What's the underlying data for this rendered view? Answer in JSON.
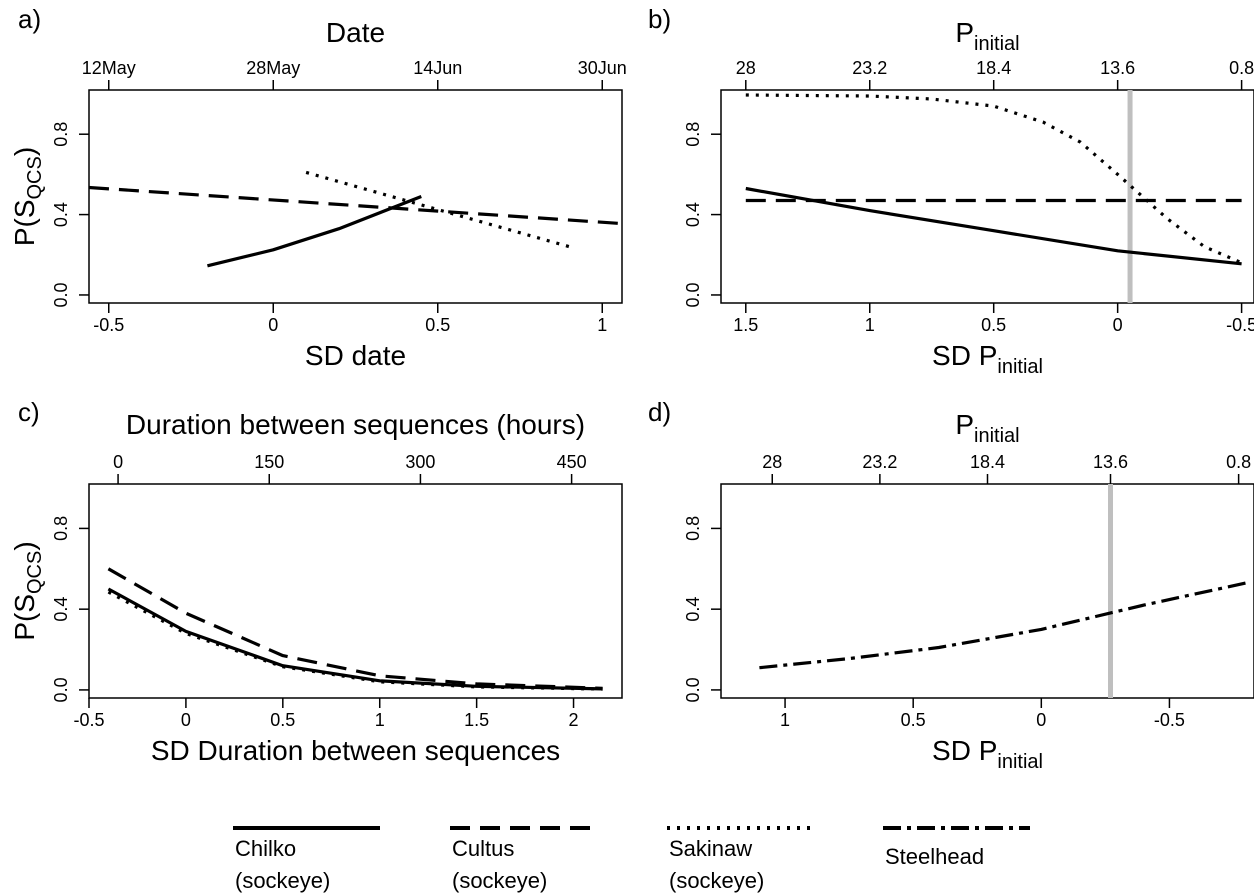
{
  "chart_data": [
    {
      "panel_label": "a)",
      "type": "line",
      "top_title": "Date",
      "xlabel": "SD date",
      "ylabel": "P(S",
      "ylabel_sub": "QCS",
      "ylabel_close": ")",
      "xlim": [
        -0.56,
        1.06
      ],
      "ylim": [
        -0.04,
        1.02
      ],
      "x_ticks": [
        -0.5,
        0,
        0.5,
        1
      ],
      "x_tick_labels": [
        "-0.5",
        "0",
        "0.5",
        "1"
      ],
      "y_ticks": [
        0.0,
        0.4,
        0.8
      ],
      "y_tick_labels": [
        "0.0",
        "0.4",
        "0.8"
      ],
      "top_ticks": [
        -0.5,
        0.0,
        0.5,
        1.0
      ],
      "top_tick_labels": [
        "12May",
        "28May",
        "14Jun",
        "30Jun"
      ],
      "series": [
        {
          "name": "Cultus (sockeye)",
          "style": "dashed",
          "x": [
            -0.56,
            1.06
          ],
          "y": [
            0.535,
            0.355
          ]
        },
        {
          "name": "Sakinaw (sockeye)",
          "style": "dotted",
          "x": [
            0.1,
            0.9
          ],
          "y": [
            0.61,
            0.24
          ]
        },
        {
          "name": "Chilko (sockeye)",
          "style": "solid",
          "x": [
            -0.2,
            0.0,
            0.2,
            0.45
          ],
          "y": [
            0.145,
            0.225,
            0.33,
            0.49
          ]
        }
      ]
    },
    {
      "panel_label": "b)",
      "type": "line",
      "top_title": "P",
      "top_title_sub": "initial",
      "xlabel": "SD P",
      "xlabel_sub": "initial",
      "xlim": [
        1.6,
        -0.55
      ],
      "ylim": [
        -0.04,
        1.02
      ],
      "x_ticks": [
        1.5,
        1,
        0.5,
        0,
        -0.5
      ],
      "x_tick_labels": [
        "1.5",
        "1",
        "0.5",
        "0",
        "-0.5"
      ],
      "y_ticks": [
        0.0,
        0.4,
        0.8
      ],
      "y_tick_labels": [
        "0.0",
        "0.4",
        "0.8"
      ],
      "top_ticks": [
        1.5,
        1.0,
        0.5,
        0.0,
        -0.5
      ],
      "top_tick_labels": [
        "28",
        "23.2",
        "18.4",
        "13.6",
        "0.8"
      ],
      "vline": {
        "x": -0.05,
        "color": "#bfbfbf"
      },
      "series": [
        {
          "name": "Sakinaw (sockeye)",
          "style": "dotted",
          "x": [
            1.5,
            1.0,
            0.75,
            0.5,
            0.3,
            0.15,
            0.0,
            -0.2,
            -0.35,
            -0.5
          ],
          "y": [
            0.995,
            0.99,
            0.975,
            0.94,
            0.86,
            0.76,
            0.6,
            0.38,
            0.24,
            0.16
          ]
        },
        {
          "name": "Cultus (sockeye)",
          "style": "dashed",
          "x": [
            1.5,
            -0.5
          ],
          "y": [
            0.47,
            0.47
          ]
        },
        {
          "name": "Chilko (sockeye)",
          "style": "solid",
          "x": [
            1.5,
            1.0,
            0.5,
            0.0,
            -0.5
          ],
          "y": [
            0.53,
            0.42,
            0.32,
            0.22,
            0.155
          ]
        }
      ]
    },
    {
      "panel_label": "c)",
      "type": "line",
      "top_title": "Duration between sequences (hours)",
      "xlabel": "SD Duration between sequences",
      "ylabel": "P(S",
      "ylabel_sub": "QCS",
      "ylabel_close": ")",
      "xlim": [
        -0.5,
        2.25
      ],
      "ylim": [
        -0.04,
        1.02
      ],
      "x_ticks": [
        -0.5,
        0,
        0.5,
        1,
        1.5,
        2
      ],
      "x_tick_labels": [
        "-0.5",
        "0",
        "0.5",
        "1",
        "1.5",
        "2"
      ],
      "y_ticks": [
        0.0,
        0.4,
        0.8
      ],
      "y_tick_labels": [
        "0.0",
        "0.4",
        "0.8"
      ],
      "top_ticks": [
        -0.35,
        0.43,
        1.21,
        1.99
      ],
      "top_tick_labels": [
        "0",
        "150",
        "300",
        "450"
      ],
      "series": [
        {
          "name": "Cultus (sockeye)",
          "style": "dashed",
          "x": [
            -0.4,
            0.0,
            0.5,
            1.0,
            1.5,
            2.15
          ],
          "y": [
            0.6,
            0.38,
            0.17,
            0.07,
            0.03,
            0.008
          ]
        },
        {
          "name": "Sakinaw (sockeye)",
          "style": "dotted",
          "x": [
            -0.4,
            0.0,
            0.5,
            1.0,
            1.5,
            2.15
          ],
          "y": [
            0.485,
            0.28,
            0.115,
            0.04,
            0.015,
            0.004
          ]
        },
        {
          "name": "Chilko (sockeye)",
          "style": "solid",
          "x": [
            -0.4,
            0.0,
            0.5,
            1.0,
            1.5,
            2.15
          ],
          "y": [
            0.5,
            0.29,
            0.12,
            0.045,
            0.018,
            0.005
          ]
        }
      ]
    },
    {
      "panel_label": "d)",
      "type": "line",
      "top_title": "P",
      "top_title_sub": "initial",
      "xlabel": "SD P",
      "xlabel_sub": "initial",
      "xlim": [
        1.25,
        -0.83
      ],
      "ylim": [
        -0.04,
        1.02
      ],
      "x_ticks": [
        1,
        0.5,
        0,
        -0.5
      ],
      "x_tick_labels": [
        "1",
        "0.5",
        "0",
        "-0.5"
      ],
      "y_ticks": [
        0.0,
        0.4,
        0.8
      ],
      "y_tick_labels": [
        "0.0",
        "0.4",
        "0.8"
      ],
      "top_ticks": [
        1.05,
        0.63,
        0.21,
        -0.27,
        -0.77
      ],
      "top_tick_labels": [
        "28",
        "23.2",
        "18.4",
        "13.6",
        "0.8"
      ],
      "vline": {
        "x": -0.27,
        "color": "#bfbfbf"
      },
      "series": [
        {
          "name": "Steelhead",
          "style": "dashdot",
          "x": [
            1.1,
            0.75,
            0.4,
            0.0,
            -0.4,
            -0.8
          ],
          "y": [
            0.11,
            0.155,
            0.21,
            0.3,
            0.42,
            0.53
          ]
        }
      ]
    }
  ],
  "legend": [
    {
      "line1": "Chilko",
      "line2": "(sockeye)",
      "style": "solid"
    },
    {
      "line1": "Cultus",
      "line2": "(sockeye)",
      "style": "dashed"
    },
    {
      "line1": "Sakinaw",
      "line2": "(sockeye)",
      "style": "dotted"
    },
    {
      "line1": "Steelhead",
      "line2": "",
      "style": "dashdot"
    }
  ]
}
